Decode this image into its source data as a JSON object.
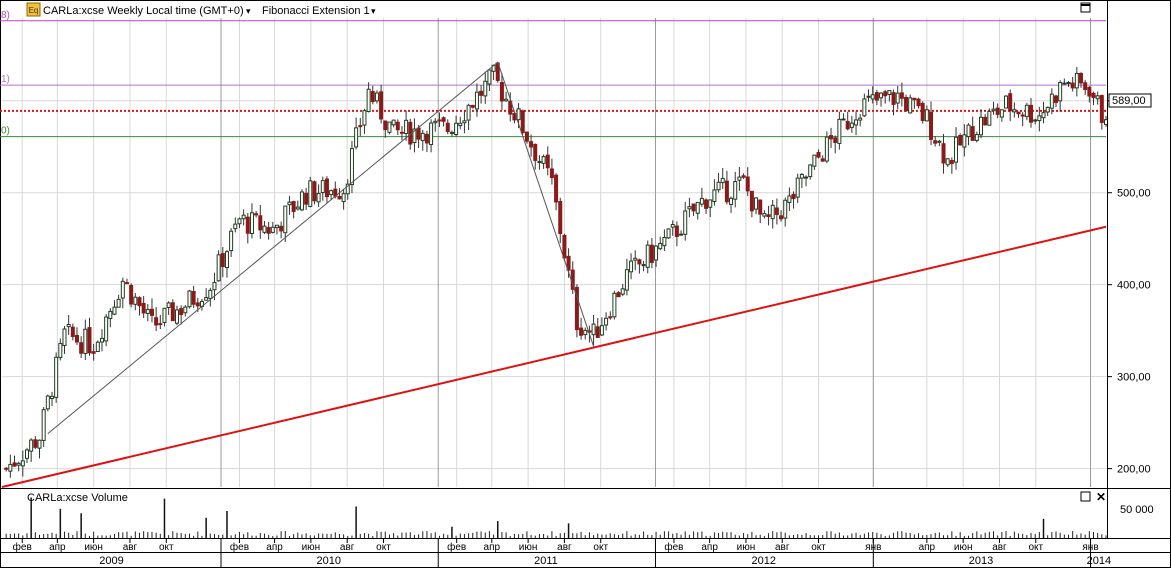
{
  "header": {
    "instrument_title": "CARLa:xcse Weekly Local time (GMT+0)",
    "indicator_label": "Fibonacci Extension 1",
    "dropdown_arrow": "▾"
  },
  "fib_levels": [
    {
      "label": "8)",
      "price": 687
    },
    {
      "label": "1)",
      "price": 617
    },
    {
      "label": "0)",
      "price": 561
    }
  ],
  "volume_panel": {
    "title": "CARLa:xcse Volume",
    "tick_label": "50 000"
  },
  "last_price_label": "589,00",
  "colors": {
    "up_candle": "#1f3d1f",
    "down_candle": "#8b1a1a",
    "trendline": "#e01010",
    "fib_top": "#c040c0",
    "fib_mid": "#b070d0",
    "fib_low": "#3a8a3a",
    "price_line": "#e01010",
    "grid": "#d8d8d8"
  },
  "chart_data": {
    "type": "candlestick",
    "symbol": "CARLa:xcse",
    "timeframe": "Weekly",
    "ylim": [
      180,
      690
    ],
    "y_ticks": [
      "200,00",
      "300,00",
      "400,00",
      "500,00",
      "600,00"
    ],
    "y_tick_values": [
      200,
      300,
      400,
      500,
      600
    ],
    "x_range": [
      "2008-12-29",
      "2014-01-27"
    ],
    "months": [
      {
        "label": "фев",
        "date": "2009-02-01"
      },
      {
        "label": "апр",
        "date": "2009-04-01"
      },
      {
        "label": "июн",
        "date": "2009-06-01"
      },
      {
        "label": "авг",
        "date": "2009-08-01"
      },
      {
        "label": "окт",
        "date": "2009-10-01"
      },
      {
        "label": "фев",
        "date": "2010-02-01"
      },
      {
        "label": "апр",
        "date": "2010-04-01"
      },
      {
        "label": "июн",
        "date": "2010-06-01"
      },
      {
        "label": "авг",
        "date": "2010-08-01"
      },
      {
        "label": "окт",
        "date": "2010-10-01"
      },
      {
        "label": "фев",
        "date": "2011-02-01"
      },
      {
        "label": "апр",
        "date": "2011-04-01"
      },
      {
        "label": "июн",
        "date": "2011-06-01"
      },
      {
        "label": "авг",
        "date": "2011-08-01"
      },
      {
        "label": "окт",
        "date": "2011-10-01"
      },
      {
        "label": "фев",
        "date": "2012-02-01"
      },
      {
        "label": "апр",
        "date": "2012-04-01"
      },
      {
        "label": "июн",
        "date": "2012-06-01"
      },
      {
        "label": "авг",
        "date": "2012-08-01"
      },
      {
        "label": "окт",
        "date": "2012-10-01"
      },
      {
        "label": "янв",
        "date": "2013-01-01"
      },
      {
        "label": "апр",
        "date": "2013-04-01"
      },
      {
        "label": "июн",
        "date": "2013-06-01"
      },
      {
        "label": "авг",
        "date": "2013-08-01"
      },
      {
        "label": "окт",
        "date": "2013-10-01"
      },
      {
        "label": "янв",
        "date": "2014-01-01"
      }
    ],
    "years": [
      {
        "label": "2009",
        "date": "2009-07-01"
      },
      {
        "label": "2010",
        "date": "2010-07-01"
      },
      {
        "label": "2011",
        "date": "2011-07-01"
      },
      {
        "label": "2012",
        "date": "2012-07-01"
      },
      {
        "label": "2013",
        "date": "2013-07-01"
      },
      {
        "label": "2014",
        "date": "2014-01-15"
      }
    ],
    "year_starts": [
      "2010-01-01",
      "2011-01-01",
      "2012-01-01",
      "2013-01-01",
      "2014-01-01"
    ],
    "price_path": [
      {
        "date": "2009-01-05",
        "price": 200
      },
      {
        "date": "2009-03-02",
        "price": 235
      },
      {
        "date": "2009-04-13",
        "price": 345
      },
      {
        "date": "2009-06-01",
        "price": 335
      },
      {
        "date": "2009-07-20",
        "price": 405
      },
      {
        "date": "2009-09-07",
        "price": 355
      },
      {
        "date": "2009-10-26",
        "price": 375
      },
      {
        "date": "2009-12-14",
        "price": 400
      },
      {
        "date": "2010-02-01",
        "price": 470
      },
      {
        "date": "2010-03-29",
        "price": 460
      },
      {
        "date": "2010-05-24",
        "price": 500
      },
      {
        "date": "2010-07-26",
        "price": 505
      },
      {
        "date": "2010-09-06",
        "price": 610
      },
      {
        "date": "2010-10-18",
        "price": 565
      },
      {
        "date": "2011-01-17",
        "price": 570
      },
      {
        "date": "2011-04-04",
        "price": 625
      },
      {
        "date": "2011-05-16",
        "price": 580
      },
      {
        "date": "2011-07-11",
        "price": 510
      },
      {
        "date": "2011-08-22",
        "price": 360
      },
      {
        "date": "2011-09-19",
        "price": 345
      },
      {
        "date": "2011-11-14",
        "price": 410
      },
      {
        "date": "2012-01-23",
        "price": 450
      },
      {
        "date": "2012-03-26",
        "price": 495
      },
      {
        "date": "2012-05-28",
        "price": 510
      },
      {
        "date": "2012-07-02",
        "price": 465
      },
      {
        "date": "2012-08-13",
        "price": 490
      },
      {
        "date": "2012-10-08",
        "price": 545
      },
      {
        "date": "2012-12-10",
        "price": 595
      },
      {
        "date": "2013-02-11",
        "price": 605
      },
      {
        "date": "2013-04-01",
        "price": 580
      },
      {
        "date": "2013-05-06",
        "price": 535
      },
      {
        "date": "2013-06-17",
        "price": 570
      },
      {
        "date": "2013-08-12",
        "price": 595
      },
      {
        "date": "2013-10-07",
        "price": 585
      },
      {
        "date": "2013-11-18",
        "price": 620
      },
      {
        "date": "2013-12-30",
        "price": 615
      },
      {
        "date": "2014-01-20",
        "price": 585
      },
      {
        "date": "2014-01-27",
        "price": 589
      }
    ],
    "trendline_red": [
      {
        "date": "2008-12-29",
        "price": 180
      },
      {
        "date": "2014-01-27",
        "price": 463
      }
    ],
    "fib_lines": [
      [
        {
          "date": "2009-03-16",
          "price": 238
        },
        {
          "date": "2011-04-11",
          "price": 642
        }
      ],
      [
        {
          "date": "2011-04-11",
          "price": 642
        },
        {
          "date": "2011-09-19",
          "price": 333
        }
      ]
    ],
    "current_price": 589,
    "volume_scale_max": 80000,
    "volume_spikes": [
      {
        "date": "2009-02-16",
        "value": 72000
      },
      {
        "date": "2009-04-06",
        "value": 52000
      },
      {
        "date": "2009-05-11",
        "value": 44000
      },
      {
        "date": "2009-09-28",
        "value": 70000
      },
      {
        "date": "2009-12-07",
        "value": 36000
      },
      {
        "date": "2010-01-11",
        "value": 48000
      },
      {
        "date": "2010-08-16",
        "value": 56000
      },
      {
        "date": "2011-01-24",
        "value": 20000
      },
      {
        "date": "2011-04-11",
        "value": 30000
      },
      {
        "date": "2011-08-08",
        "value": 26000
      },
      {
        "date": "2013-10-14",
        "value": 34000
      }
    ]
  }
}
